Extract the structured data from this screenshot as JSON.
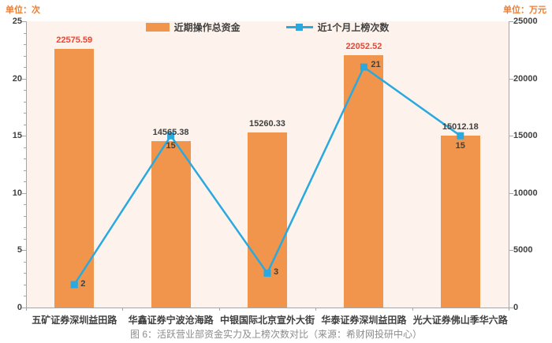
{
  "units": {
    "left": "单位：次",
    "right": "单位：万元"
  },
  "caption": "图 6：活跃营业部资金实力及上榜次数对比（来源：希财网投研中心）",
  "colors": {
    "bar": "#f0954b",
    "line": "#29a9df",
    "plot_bg": "#fdf3ec",
    "axis": "#a6a6a6",
    "label_dark": "#404040",
    "label_red": "#f8402c",
    "unit_orange": "#ed7d31",
    "caption_gray": "#8c8c8c"
  },
  "chart_data": {
    "type": "combo",
    "categories": [
      "五矿证券深圳益田路",
      "华鑫证券宁波沧海路",
      "中银国际北京宣外大街",
      "华泰证券深圳益田路",
      "光大证券佛山季华六路"
    ],
    "series": [
      {
        "name": "近期操作总资金",
        "type": "bar",
        "axis": "right",
        "values": [
          22575.59,
          14565.38,
          15260.33,
          22052.52,
          15012.18
        ],
        "color": "#f0954b"
      },
      {
        "name": "近1个月上榜次数",
        "type": "line",
        "axis": "left",
        "values": [
          2,
          15,
          3,
          21,
          15
        ],
        "color": "#29a9df"
      }
    ],
    "value_label_colors": [
      "#f8402c",
      "#404040",
      "#404040",
      "#f8402c",
      "#404040"
    ],
    "left_axis": {
      "title": "单位：次",
      "min": 0,
      "max": 25,
      "ticks": [
        0,
        5,
        10,
        15,
        20,
        25
      ],
      "minor_step": 1
    },
    "right_axis": {
      "title": "单位：万元",
      "min": 0,
      "max": 25000,
      "ticks": [
        0,
        5000,
        10000,
        15000,
        20000,
        25000
      ]
    },
    "grid": false,
    "legend_position": "top-center"
  }
}
